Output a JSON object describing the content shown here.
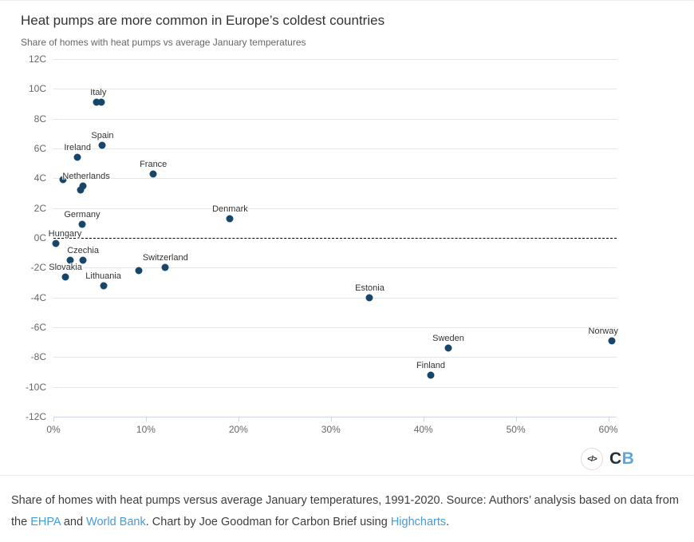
{
  "chart_data": {
    "type": "scatter",
    "title": "Heat pumps are more common in Europe’s coldest countries",
    "subtitle": "Share of homes with heat pumps vs average January temperatures",
    "xlabel": "",
    "ylabel": "",
    "xlim": [
      0,
      60.9
    ],
    "ylim": [
      -12,
      12
    ],
    "grid": "horizontal-only",
    "legend": "none",
    "zero_line": "dashed-black",
    "x_tick_values": [
      0,
      10,
      20,
      30,
      40,
      50,
      60
    ],
    "x_ticks": [
      "0%",
      "10%",
      "20%",
      "30%",
      "40%",
      "50%",
      "60%"
    ],
    "y_tick_values": [
      12,
      10,
      8,
      6,
      4,
      2,
      0,
      -2,
      -4,
      -6,
      -8,
      -10,
      -12
    ],
    "y_ticks": [
      "12C",
      "10C",
      "8C",
      "6C",
      "4C",
      "2C",
      "0C",
      "-2C",
      "-4C",
      "-6C",
      "-8C",
      "-10C",
      "-12C"
    ],
    "points": [
      {
        "label": "Italy",
        "x": 5.2,
        "y": 9.1,
        "label_dx": -4
      },
      {
        "x": 4.7,
        "y": 9.1
      },
      {
        "label": "Spain",
        "x": 5.3,
        "y": 6.2
      },
      {
        "label": "Ireland",
        "x": 2.6,
        "y": 5.4
      },
      {
        "x": 1.0,
        "y": 3.9
      },
      {
        "label": "Netherlands",
        "x": 3.2,
        "y": 3.5,
        "label_dx": 4
      },
      {
        "x": 2.9,
        "y": 3.2
      },
      {
        "label": "France",
        "x": 10.8,
        "y": 4.3
      },
      {
        "label": "Germany",
        "x": 3.1,
        "y": 0.9
      },
      {
        "label": "Denmark",
        "x": 19.1,
        "y": 1.3
      },
      {
        "label": "Hungary",
        "x": 0.3,
        "y": -0.4,
        "label_dx": 11
      },
      {
        "label": "Czechia",
        "x": 3.2,
        "y": -1.5
      },
      {
        "x": 1.8,
        "y": -1.5
      },
      {
        "label": "Slovakia",
        "x": 1.3,
        "y": -2.6
      },
      {
        "label": "Lithuania",
        "x": 5.4,
        "y": -3.2
      },
      {
        "x": 9.2,
        "y": -2.2
      },
      {
        "label": "Switzerland",
        "x": 12.1,
        "y": -2.0
      },
      {
        "label": "Estonia",
        "x": 34.2,
        "y": -4.0
      },
      {
        "label": "Sweden",
        "x": 42.7,
        "y": -7.4
      },
      {
        "label": "Finland",
        "x": 40.8,
        "y": -9.2
      },
      {
        "label": "Norway",
        "x": 60.4,
        "y": -6.9,
        "label_dx": -11
      }
    ]
  },
  "branding": {
    "icon_text": "</>",
    "wordmark_c": "C",
    "wordmark_b": "B"
  },
  "caption": {
    "segments": [
      {
        "text": "Share of homes with heat pumps versus average January temperatures, 1991-2020. Source: Authors’ analysis based on data from the "
      },
      {
        "text": "EHPA",
        "link": true
      },
      {
        "text": " and "
      },
      {
        "text": "World Bank",
        "link": true
      },
      {
        "text": ". Chart by Joe Goodman for Carbon Brief using "
      },
      {
        "text": "Highcharts",
        "link": true
      },
      {
        "text": "."
      }
    ]
  },
  "colors": {
    "dot": "#164669",
    "link": "#459bd5",
    "grid": "#e6e6e6",
    "axis": "#ccd6eb",
    "title": "#333333",
    "subtitle": "#666666",
    "tick_label": "#666666",
    "data_label": "#333333",
    "cb_c": "#20303c",
    "cb_b": "#61a5d8"
  }
}
